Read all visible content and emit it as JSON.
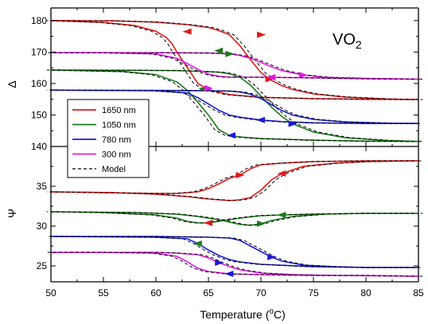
{
  "chart_data": [
    {
      "type": "line",
      "panel": "top",
      "ylabel": "Δ",
      "ylim": [
        140,
        184
      ],
      "yticks": [
        "140",
        "150",
        "160",
        "170",
        "180"
      ],
      "xlim": [
        50,
        85
      ],
      "annotation": {
        "main": "VO",
        "sub": "2"
      },
      "series": [
        {
          "name": "1650 nm",
          "color": "#e0191b",
          "heating": [
            [
              50,
              180
            ],
            [
              56,
              179.9
            ],
            [
              60,
              179.5
            ],
            [
              63,
              178.7
            ],
            [
              65,
              177.8
            ],
            [
              66,
              176.8
            ],
            [
              67,
              175.5
            ],
            [
              68,
              172.0
            ],
            [
              69,
              167.6
            ],
            [
              70,
              163.5
            ],
            [
              71,
              161.0
            ],
            [
              72,
              159.3
            ],
            [
              73,
              158.1
            ],
            [
              75,
              156.7
            ],
            [
              78,
              155.7
            ],
            [
              82,
              155.1
            ],
            [
              85,
              154.9
            ]
          ],
          "cooling": [
            [
              85,
              154.9
            ],
            [
              80,
              155.0
            ],
            [
              75,
              155.2
            ],
            [
              70,
              155.6
            ],
            [
              67,
              156.5
            ],
            [
              65,
              158.0
            ],
            [
              64,
              160.0
            ],
            [
              63,
              165.0
            ],
            [
              62,
              170.0
            ],
            [
              61.5,
              172.8
            ],
            [
              61,
              174.6
            ],
            [
              60,
              176.6
            ],
            [
              58,
              178.4
            ],
            [
              55,
              179.4
            ],
            [
              50,
              180
            ]
          ]
        },
        {
          "name": "1050 nm",
          "color": "#1b7a1b",
          "heating": [
            [
              50,
              164.3
            ],
            [
              58,
              164.2
            ],
            [
              62,
              164.1
            ],
            [
              64,
              163.9
            ],
            [
              66,
              163.6
            ],
            [
              67,
              163.1
            ],
            [
              68,
              162.0
            ],
            [
              69,
              159.5
            ],
            [
              70,
              156.0
            ],
            [
              71,
              152.5
            ],
            [
              72,
              149.5
            ],
            [
              73,
              147.2
            ],
            [
              75,
              144.6
            ],
            [
              78,
              142.8
            ],
            [
              82,
              141.9
            ],
            [
              85,
              141.6
            ]
          ],
          "cooling": [
            [
              85,
              141.6
            ],
            [
              80,
              141.7
            ],
            [
              75,
              142.0
            ],
            [
              70,
              142.5
            ],
            [
              68,
              143.0
            ],
            [
              67,
              143.5
            ],
            [
              66,
              145.3
            ],
            [
              65,
              150.0
            ],
            [
              64,
              154.0
            ],
            [
              63,
              157.8
            ],
            [
              62,
              160.5
            ],
            [
              60,
              162.8
            ],
            [
              57,
              163.8
            ],
            [
              50,
              164.3
            ]
          ]
        },
        {
          "name": "780 nm",
          "color": "#1a1ad6",
          "heating": [
            [
              50,
              157.9
            ],
            [
              60,
              157.8
            ],
            [
              65,
              157.7
            ],
            [
              67,
              157.6
            ],
            [
              68,
              157.3
            ],
            [
              69,
              156.6
            ],
            [
              70,
              155.2
            ],
            [
              71,
              153.3
            ],
            [
              72,
              151.4
            ],
            [
              73,
              150.0
            ],
            [
              75,
              148.6
            ],
            [
              78,
              147.8
            ],
            [
              82,
              147.4
            ],
            [
              85,
              147.3
            ]
          ],
          "cooling": [
            [
              85,
              147.3
            ],
            [
              80,
              147.3
            ],
            [
              75,
              147.5
            ],
            [
              72,
              147.9
            ],
            [
              70,
              148.4
            ],
            [
              68,
              149.3
            ],
            [
              67,
              150.0
            ],
            [
              66,
              151.5
            ],
            [
              65,
              153.5
            ],
            [
              64,
              155.5
            ],
            [
              63,
              157.0
            ],
            [
              60,
              157.7
            ],
            [
              50,
              157.9
            ]
          ]
        },
        {
          "name": "300 nm",
          "color": "#e01ae0",
          "heating": [
            [
              50,
              169.8
            ],
            [
              60,
              169.8
            ],
            [
              65,
              169.7
            ],
            [
              67,
              169.4
            ],
            [
              68,
              168.9
            ],
            [
              69,
              168.0
            ],
            [
              70,
              166.7
            ],
            [
              71,
              165.3
            ],
            [
              72,
              164.1
            ],
            [
              74,
              162.7
            ],
            [
              76,
              162.0
            ],
            [
              80,
              161.6
            ],
            [
              85,
              161.4
            ]
          ],
          "cooling": [
            [
              85,
              161.4
            ],
            [
              80,
              161.5
            ],
            [
              75,
              161.8
            ],
            [
              70,
              162.0
            ],
            [
              67,
              162.0
            ],
            [
              66,
              162.3
            ],
            [
              65,
              163.0
            ],
            [
              64,
              164.5
            ],
            [
              63,
              166.3
            ],
            [
              62,
              168.0
            ],
            [
              60,
              169.4
            ],
            [
              55,
              169.8
            ],
            [
              50,
              169.8
            ]
          ]
        }
      ]
    },
    {
      "type": "line",
      "panel": "bottom",
      "ylabel": "Ψ",
      "ylim": [
        23,
        40
      ],
      "yticks": [
        "25",
        "30",
        "35"
      ],
      "xlim": [
        50,
        85
      ],
      "xticks": [
        "50",
        "55",
        "60",
        "65",
        "70",
        "75",
        "80",
        "85"
      ],
      "xlabel": {
        "main": "Temperature (",
        "sup": "o",
        "tail": "C)"
      },
      "series": [
        {
          "name": "1650 nm",
          "color": "#e0191b",
          "heating": [
            [
              50,
              34.3
            ],
            [
              56,
              34.2
            ],
            [
              60,
              34.0
            ],
            [
              63,
              33.7
            ],
            [
              65,
              33.4
            ],
            [
              67,
              33.2
            ],
            [
              68,
              33.3
            ],
            [
              69,
              33.6
            ],
            [
              70,
              34.5
            ],
            [
              71,
              35.8
            ],
            [
              72,
              36.6
            ],
            [
              74,
              37.5
            ],
            [
              77,
              37.9
            ],
            [
              80,
              38.1
            ],
            [
              85,
              38.2
            ]
          ],
          "cooling": [
            [
              85,
              38.2
            ],
            [
              80,
              38.2
            ],
            [
              75,
              38.1
            ],
            [
              72,
              37.9
            ],
            [
              70,
              37.7
            ],
            [
              69,
              37.2
            ],
            [
              68,
              36.4
            ],
            [
              67,
              36.0
            ],
            [
              66,
              35.3
            ],
            [
              65,
              34.7
            ],
            [
              64,
              34.3
            ],
            [
              62,
              34.1
            ],
            [
              60,
              34.1
            ],
            [
              50,
              34.3
            ]
          ]
        },
        {
          "name": "1050 nm",
          "color": "#1b7a1b",
          "heating": [
            [
              50,
              31.8
            ],
            [
              58,
              31.7
            ],
            [
              62,
              31.5
            ],
            [
              64,
              31.2
            ],
            [
              66,
              30.8
            ],
            [
              67,
              30.5
            ],
            [
              68,
              30.2
            ],
            [
              69,
              30.1
            ],
            [
              70,
              30.3
            ],
            [
              71,
              30.7
            ],
            [
              73,
              31.2
            ],
            [
              76,
              31.5
            ],
            [
              80,
              31.6
            ],
            [
              85,
              31.6
            ]
          ],
          "cooling": [
            [
              85,
              31.6
            ],
            [
              80,
              31.6
            ],
            [
              75,
              31.5
            ],
            [
              72,
              31.4
            ],
            [
              70,
              31.3
            ],
            [
              68,
              31.0
            ],
            [
              66,
              30.6
            ],
            [
              65,
              30.4
            ],
            [
              64,
              30.4
            ],
            [
              63,
              30.6
            ],
            [
              62,
              31.0
            ],
            [
              60,
              31.4
            ],
            [
              55,
              31.7
            ],
            [
              50,
              31.8
            ]
          ]
        },
        {
          "name": "780 nm",
          "color": "#1a1ad6",
          "heating": [
            [
              50,
              28.7
            ],
            [
              60,
              28.7
            ],
            [
              65,
              28.6
            ],
            [
              67,
              28.5
            ],
            [
              68,
              28.2
            ],
            [
              69,
              27.5
            ],
            [
              70,
              26.8
            ],
            [
              71,
              26.1
            ],
            [
              72,
              25.6
            ],
            [
              74,
              25.1
            ],
            [
              77,
              24.9
            ],
            [
              80,
              24.8
            ],
            [
              85,
              24.8
            ]
          ],
          "cooling": [
            [
              85,
              24.8
            ],
            [
              80,
              24.8
            ],
            [
              75,
              24.9
            ],
            [
              70,
              25.2
            ],
            [
              68,
              25.5
            ],
            [
              67,
              25.8
            ],
            [
              66,
              26.3
            ],
            [
              65,
              27.0
            ],
            [
              64,
              27.8
            ],
            [
              63,
              28.4
            ],
            [
              60,
              28.6
            ],
            [
              50,
              28.7
            ]
          ]
        },
        {
          "name": "300 nm",
          "color": "#e01ae0",
          "heating": [
            [
              50,
              26.7
            ],
            [
              60,
              26.7
            ],
            [
              62,
              26.6
            ],
            [
              64,
              26.4
            ],
            [
              65,
              26.0
            ],
            [
              66,
              25.4
            ],
            [
              67,
              24.9
            ],
            [
              68,
              24.5
            ],
            [
              70,
              24.1
            ],
            [
              73,
              23.9
            ],
            [
              77,
              23.8
            ],
            [
              85,
              23.7
            ]
          ],
          "cooling": [
            [
              85,
              23.7
            ],
            [
              80,
              23.8
            ],
            [
              75,
              23.8
            ],
            [
              70,
              23.9
            ],
            [
              67,
              24.0
            ],
            [
              65,
              24.3
            ],
            [
              64,
              24.7
            ],
            [
              63,
              25.5
            ],
            [
              62,
              26.2
            ],
            [
              60,
              26.6
            ],
            [
              55,
              26.7
            ],
            [
              50,
              26.7
            ]
          ]
        }
      ]
    }
  ],
  "legend": {
    "placement": "left of the panel boundary",
    "entries": [
      {
        "label": "1650 nm",
        "color": "#e0191b",
        "style": "solid"
      },
      {
        "label": "1050 nm",
        "color": "#1b7a1b",
        "style": "solid"
      },
      {
        "label": "780 nm",
        "color": "#1a1ad6",
        "style": "solid"
      },
      {
        "label": "300 nm",
        "color": "#e01ae0",
        "style": "solid"
      },
      {
        "label": "Model",
        "color": "#000000",
        "style": "dashed"
      }
    ]
  },
  "arrows": {
    "top": [
      [
        70,
        175.5,
        1
      ],
      [
        63,
        176.5,
        -1
      ],
      [
        70.8,
        161.4,
        1
      ],
      [
        64.5,
        158.3,
        -1
      ],
      [
        66,
        170.4,
        -1
      ],
      [
        67,
        169.4,
        1
      ],
      [
        73,
        147.2,
        1
      ],
      [
        67.2,
        143.5,
        -1
      ],
      [
        70,
        148.4,
        -1
      ],
      [
        65,
        158.5,
        1
      ],
      [
        71,
        162.0,
        -1
      ],
      [
        74,
        162.7,
        1
      ]
    ],
    "bottom": [
      [
        68,
        36.4,
        1
      ],
      [
        72,
        36.6,
        -1
      ],
      [
        65,
        30.4,
        -1
      ],
      [
        70,
        30.3,
        1
      ],
      [
        72,
        31.4,
        -1
      ],
      [
        64,
        27.8,
        -1
      ],
      [
        71,
        26.1,
        1
      ],
      [
        66,
        25.4,
        1
      ],
      [
        67,
        24.0,
        -1
      ]
    ]
  }
}
